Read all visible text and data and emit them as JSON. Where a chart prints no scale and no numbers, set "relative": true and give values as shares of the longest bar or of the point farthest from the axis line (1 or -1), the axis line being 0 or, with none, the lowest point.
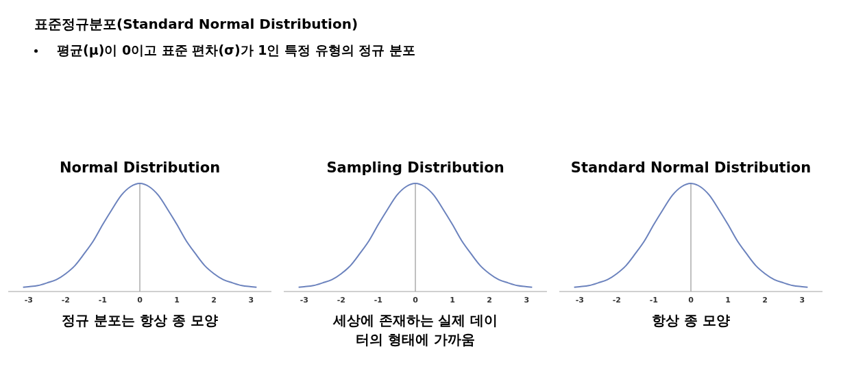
{
  "chart_data": [
    {
      "type": "other",
      "title": "표준정규분포(Standard Normal Distribution)",
      "annotations": [
        "평균(μ)이 0이고 표준 편차(σ)가 1인 특정 유형의 정규 분포"
      ]
    },
    {
      "type": "line",
      "title": "Normal Distribution",
      "xlabel": "정규 분포는 항상 종 모양",
      "relative": true,
      "xlim": [
        -3.55,
        3.55
      ],
      "xticks": [
        -3,
        -2,
        -1,
        0,
        1,
        2,
        3
      ],
      "marker": "none",
      "grid": false,
      "legend": false,
      "ref_lines": [
        {
          "axis": "x",
          "value": 0,
          "color": "#808080"
        }
      ],
      "series": [
        {
          "color": "#6b82bd",
          "x": [
            -3.15,
            -3,
            -2.75,
            -2.5,
            -2.25,
            -2,
            -1.75,
            -1.5,
            -1.25,
            -1,
            -0.75,
            -0.5,
            -0.25,
            0,
            0.25,
            0.5,
            0.75,
            1,
            1.25,
            1.5,
            1.75,
            2,
            2.25,
            2.5,
            2.75,
            3,
            3.15
          ],
          "values": [
            0.04,
            0.045,
            0.055,
            0.08,
            0.11,
            0.165,
            0.24,
            0.35,
            0.47,
            0.62,
            0.76,
            0.89,
            0.97,
            1,
            0.97,
            0.89,
            0.76,
            0.62,
            0.47,
            0.35,
            0.24,
            0.165,
            0.11,
            0.08,
            0.055,
            0.045,
            0.04
          ]
        }
      ]
    },
    {
      "type": "line",
      "title": "Sampling Distribution",
      "xlabel": "세상에 존재하는 실제 데이터의 형태에 가까움",
      "relative": true,
      "xlim": [
        -3.55,
        3.55
      ],
      "xticks": [
        -3,
        -2,
        -1,
        0,
        1,
        2,
        3
      ],
      "marker": "none",
      "grid": false,
      "legend": false,
      "ref_lines": [
        {
          "axis": "x",
          "value": 0,
          "color": "#808080"
        }
      ],
      "series": [
        {
          "color": "#6b82bd",
          "x": [
            -3.15,
            -3,
            -2.75,
            -2.5,
            -2.25,
            -2,
            -1.75,
            -1.5,
            -1.25,
            -1,
            -0.75,
            -0.5,
            -0.25,
            0,
            0.25,
            0.5,
            0.75,
            1,
            1.25,
            1.5,
            1.75,
            2,
            2.25,
            2.5,
            2.75,
            3,
            3.15
          ],
          "values": [
            0.04,
            0.045,
            0.055,
            0.08,
            0.11,
            0.165,
            0.24,
            0.35,
            0.47,
            0.62,
            0.76,
            0.89,
            0.97,
            1,
            0.97,
            0.89,
            0.76,
            0.62,
            0.47,
            0.35,
            0.24,
            0.165,
            0.11,
            0.08,
            0.055,
            0.045,
            0.04
          ]
        }
      ]
    },
    {
      "type": "line",
      "title": "Standard Normal Distribution",
      "xlabel": "항상 종 모양",
      "relative": true,
      "xlim": [
        -3.55,
        3.55
      ],
      "xticks": [
        -3,
        -2,
        -1,
        0,
        1,
        2,
        3
      ],
      "marker": "none",
      "grid": false,
      "legend": false,
      "ref_lines": [
        {
          "axis": "x",
          "value": 0,
          "color": "#808080"
        }
      ],
      "series": [
        {
          "color": "#6b82bd",
          "x": [
            -3.15,
            -3,
            -2.75,
            -2.5,
            -2.25,
            -2,
            -1.75,
            -1.5,
            -1.25,
            -1,
            -0.75,
            -0.5,
            -0.25,
            0,
            0.25,
            0.5,
            0.75,
            1,
            1.25,
            1.5,
            1.75,
            2,
            2.25,
            2.5,
            2.75,
            3,
            3.15
          ],
          "values": [
            0.04,
            0.045,
            0.055,
            0.08,
            0.11,
            0.165,
            0.24,
            0.35,
            0.47,
            0.62,
            0.76,
            0.89,
            0.97,
            1,
            0.97,
            0.89,
            0.76,
            0.62,
            0.47,
            0.35,
            0.24,
            0.165,
            0.11,
            0.08,
            0.055,
            0.045,
            0.04
          ]
        }
      ]
    }
  ]
}
